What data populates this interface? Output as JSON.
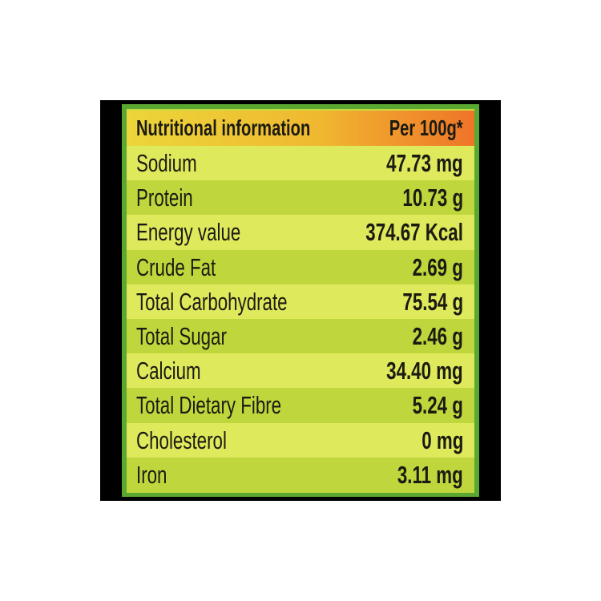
{
  "table": {
    "header": [
      "Nutritional information",
      "Per 100g*"
    ],
    "rows": [
      [
        "Sodium",
        "47.73 mg"
      ],
      [
        "Protein",
        "10.73 g"
      ],
      [
        "Energy value",
        "374.67 Kcal"
      ],
      [
        "Crude Fat",
        "2.69 g"
      ],
      [
        "Total Carbohydrate",
        "75.54 g"
      ],
      [
        "Total Sugar",
        "2.46 g"
      ],
      [
        "Calcium",
        "34.40 mg"
      ],
      [
        "Total Dietary Fibre",
        "5.24 g"
      ],
      [
        "Cholesterol",
        "0 mg"
      ],
      [
        "Iron",
        "3.11 mg"
      ]
    ]
  }
}
